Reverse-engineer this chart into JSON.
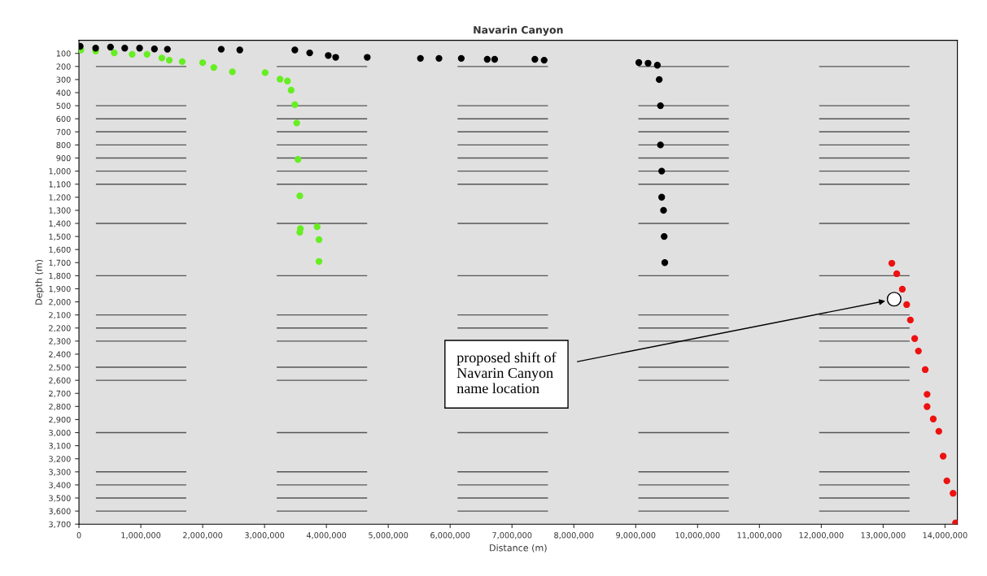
{
  "chart_data": {
    "type": "scatter",
    "title": "Navarin Canyon",
    "xlabel": "Distance (m)",
    "ylabel": "Depth (m)",
    "xlim": [
      0,
      14200000
    ],
    "ylim": [
      3700,
      0
    ],
    "xticks": [
      0,
      {
        "value": 1000000,
        "label": "1,000,000"
      },
      {
        "value": 2000000,
        "label": "2,000,000"
      },
      {
        "value": 3000000,
        "label": "3,000,000"
      },
      {
        "value": 4000000,
        "label": "4,000,000"
      },
      {
        "value": 5000000,
        "label": "5,000,000"
      },
      {
        "value": 6000000,
        "label": "6,000,000"
      },
      {
        "value": 7000000,
        "label": "7,000,000"
      },
      {
        "value": 8000000,
        "label": "8,000,000"
      },
      {
        "value": 9000000,
        "label": "9,000,000"
      },
      {
        "value": 10000000,
        "label": "10,000,000"
      },
      {
        "value": 11000000,
        "label": "11,000,000"
      },
      {
        "value": 12000000,
        "label": "12,000,000"
      },
      {
        "value": 13000000,
        "label": "13,000,000"
      },
      {
        "value": 14000000,
        "label": "14,000,000"
      }
    ],
    "yticks": [
      100,
      200,
      300,
      400,
      500,
      600,
      700,
      800,
      900,
      {
        "value": 1000,
        "label": "1,000"
      },
      {
        "value": 1100,
        "label": "1,100"
      },
      {
        "value": 1200,
        "label": "1,200"
      },
      {
        "value": 1300,
        "label": "1,300"
      },
      {
        "value": 1400,
        "label": "1,400"
      },
      {
        "value": 1500,
        "label": "1,500"
      },
      {
        "value": 1600,
        "label": "1,600"
      },
      {
        "value": 1700,
        "label": "1,700"
      },
      {
        "value": 1800,
        "label": "1,800"
      },
      {
        "value": 1900,
        "label": "1,900"
      },
      {
        "value": 2000,
        "label": "2,000"
      },
      {
        "value": 2100,
        "label": "2,100"
      },
      {
        "value": 2200,
        "label": "2,200"
      },
      {
        "value": 2300,
        "label": "2,300"
      },
      {
        "value": 2400,
        "label": "2,400"
      },
      {
        "value": 2500,
        "label": "2,500"
      },
      {
        "value": 2600,
        "label": "2,600"
      },
      {
        "value": 2700,
        "label": "2,700"
      },
      {
        "value": 2800,
        "label": "2,800"
      },
      {
        "value": 2900,
        "label": "2,900"
      },
      {
        "value": 3000,
        "label": "3,000"
      },
      {
        "value": 3100,
        "label": "3,100"
      },
      {
        "value": 3200,
        "label": "3,200"
      },
      {
        "value": 3300,
        "label": "3,300"
      },
      {
        "value": 3400,
        "label": "3,400"
      },
      {
        "value": 3500,
        "label": "3,500"
      },
      {
        "value": 3600,
        "label": "3,600"
      },
      {
        "value": 3700,
        "label": "3,700"
      }
    ],
    "marker": "circle",
    "grid": false,
    "legend": false,
    "series": [
      {
        "color": "#66ee22",
        "x": [
          30000,
          270000,
          570000,
          860000,
          1100000,
          1340000,
          1460000,
          1670000,
          2000000,
          2180000,
          2480000,
          3010000,
          3250000,
          3370000,
          3430000,
          3490000,
          3520000,
          3540000,
          3570000,
          3580000,
          3570000,
          3850000,
          3880000,
          3880000
        ],
        "values": [
          74,
          82,
          96,
          107,
          107,
          135,
          152,
          163,
          171,
          208,
          241,
          247,
          297,
          311,
          381,
          492,
          632,
          911,
          1190,
          1440,
          1468,
          1426,
          1524,
          1691
        ]
      },
      {
        "color": "#000000",
        "x": [
          20000,
          270000,
          510000,
          740000,
          980000,
          1220000,
          1430000,
          2300000,
          2600000,
          3490000,
          3730000,
          4030000,
          4150000,
          4660000,
          5520000,
          5820000,
          6180000,
          6600000,
          6720000,
          7370000,
          7520000,
          9050000,
          9200000,
          9350000,
          9380000,
          9400000,
          9400000,
          9420000,
          9420000,
          9450000,
          9460000,
          9470000
        ],
        "values": [
          46,
          60,
          52,
          60,
          60,
          66,
          68,
          68,
          74,
          74,
          96,
          116,
          130,
          130,
          138,
          138,
          138,
          145,
          145,
          145,
          152,
          170,
          175,
          190,
          300,
          500,
          800,
          1000,
          1200,
          1300,
          1500,
          1700
        ]
      },
      {
        "color": "#ee1111",
        "x": [
          13140000,
          13220000,
          13310000,
          13380000,
          13440000,
          13510000,
          13570000,
          13680000,
          13710000,
          13710000,
          13810000,
          13900000,
          13970000,
          14030000,
          14130000,
          14170000
        ],
        "values": [
          1705,
          1785,
          1903,
          2021,
          2139,
          2281,
          2376,
          2518,
          2707,
          2801,
          2896,
          2990,
          3180,
          3369,
          3464,
          3690
        ]
      }
    ],
    "ref_lines": [
      {
        "axis": "y",
        "value": 200,
        "color": "#555555",
        "line_style": "dashed"
      },
      {
        "axis": "y",
        "value": 500,
        "color": "#555555",
        "line_style": "dashed"
      },
      {
        "axis": "y",
        "value": 600,
        "color": "#555555",
        "line_style": "dashed"
      },
      {
        "axis": "y",
        "value": 700,
        "color": "#555555",
        "line_style": "dashed"
      },
      {
        "axis": "y",
        "value": 800,
        "color": "#555555",
        "line_style": "dashed"
      },
      {
        "axis": "y",
        "value": 900,
        "color": "#555555",
        "line_style": "dashed"
      },
      {
        "axis": "y",
        "value": 1000,
        "color": "#555555",
        "line_style": "dashed"
      },
      {
        "axis": "y",
        "value": 1100,
        "color": "#555555",
        "line_style": "dashed"
      },
      {
        "axis": "y",
        "value": 1400,
        "color": "#555555",
        "line_style": "dashed"
      },
      {
        "axis": "y",
        "value": 1800,
        "color": "#555555",
        "line_style": "dashed"
      },
      {
        "axis": "y",
        "value": 2100,
        "color": "#555555",
        "line_style": "dashed"
      },
      {
        "axis": "y",
        "value": 2200,
        "color": "#555555",
        "line_style": "dashed"
      },
      {
        "axis": "y",
        "value": 2300,
        "color": "#555555",
        "line_style": "dashed"
      },
      {
        "axis": "y",
        "value": 2500,
        "color": "#555555",
        "line_style": "dashed"
      },
      {
        "axis": "y",
        "value": 2600,
        "color": "#555555",
        "line_style": "dashed"
      },
      {
        "axis": "y",
        "value": 3000,
        "color": "#555555",
        "line_style": "dashed"
      },
      {
        "axis": "y",
        "value": 3300,
        "color": "#555555",
        "line_style": "dashed"
      },
      {
        "axis": "y",
        "value": 3400,
        "color": "#555555",
        "line_style": "dashed"
      },
      {
        "axis": "y",
        "value": 3500,
        "color": "#555555",
        "line_style": "dashed"
      },
      {
        "axis": "y",
        "value": 3600,
        "color": "#555555",
        "line_style": "dashed"
      }
    ],
    "annotations": [
      "proposed shift of\nNavarin Canyon\nname location"
    ]
  }
}
